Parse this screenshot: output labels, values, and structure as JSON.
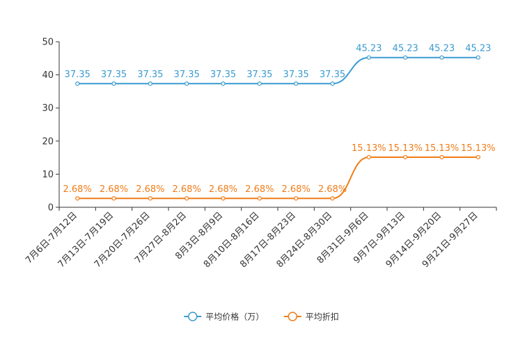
{
  "chart_data": {
    "type": "line",
    "title": "",
    "xlabel": "",
    "ylabel": "",
    "ylim": [
      0,
      50
    ],
    "yticks": [
      0,
      10,
      20,
      30,
      40,
      50
    ],
    "grid": false,
    "legend_position": "bottom-center",
    "categories": [
      "7月6日-7月12日",
      "7月13日-7月19日",
      "7月20日-7月26日",
      "7月27日-8月2日",
      "8月3日-8月9日",
      "8月10日-8月16日",
      "8月17日-8月23日",
      "8月24日-8月30日",
      "8月31日-9月6日",
      "9月7日-9月13日",
      "9月14日-9月20日",
      "9月21日-9月27日"
    ],
    "series": [
      {
        "name": "平均价格（万）",
        "color": "#3a9ad1",
        "values": [
          37.35,
          37.35,
          37.35,
          37.35,
          37.35,
          37.35,
          37.35,
          37.35,
          45.23,
          45.23,
          45.23,
          45.23
        ],
        "labels": [
          "37.35",
          "37.35",
          "37.35",
          "37.35",
          "37.35",
          "37.35",
          "37.35",
          "37.35",
          "45.23",
          "45.23",
          "45.23",
          "45.23"
        ]
      },
      {
        "name": "平均折扣",
        "color": "#f07c18",
        "values": [
          2.68,
          2.68,
          2.68,
          2.68,
          2.68,
          2.68,
          2.68,
          2.68,
          15.13,
          15.13,
          15.13,
          15.13
        ],
        "labels": [
          "2.68%",
          "2.68%",
          "2.68%",
          "2.68%",
          "2.68%",
          "2.68%",
          "2.68%",
          "2.68%",
          "15.13%",
          "15.13%",
          "15.13%",
          "15.13%"
        ]
      }
    ]
  }
}
